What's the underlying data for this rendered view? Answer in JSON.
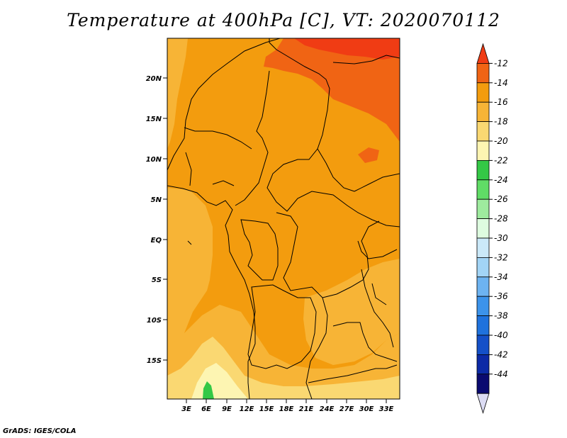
{
  "title": "Temperature at 400hPa [C], VT: 2020070112",
  "credit": "GrADS: IGES/COLA",
  "map": {
    "lat_ticks": [
      "20N",
      "15N",
      "10N",
      "5N",
      "EQ",
      "5S",
      "10S",
      "15S"
    ],
    "lon_ticks": [
      "3E",
      "6E",
      "9E",
      "12E",
      "15E",
      "18E",
      "21E",
      "24E",
      "27E",
      "30E",
      "33E"
    ]
  },
  "legend": {
    "labels": [
      "-12",
      "-14",
      "-16",
      "-18",
      "-20",
      "-22",
      "-24",
      "-26",
      "-28",
      "-30",
      "-32",
      "-34",
      "-36",
      "-38",
      "-40",
      "-42",
      "-44"
    ],
    "colors": [
      "#f03c14",
      "#f06414",
      "#f39c0e",
      "#f7b436",
      "#fad872",
      "#fdf5b2",
      "#34c846",
      "#60dc66",
      "#9eeb9e",
      "#defce0",
      "#cbe9f9",
      "#a2d4f6",
      "#6db3f1",
      "#3c93ea",
      "#1f72dd",
      "#1450c8",
      "#0c2aa6",
      "#0a0a70",
      "#dcdcf4"
    ]
  },
  "palette": {
    "t_m12": "#f03c14",
    "t_m14": "#f06414",
    "t_m16": "#f39c0e",
    "t_m18": "#f7b436",
    "t_m20": "#fad872",
    "t_m22": "#fdf5b2",
    "t_m24": "#34c846",
    "borders": "#000000"
  }
}
